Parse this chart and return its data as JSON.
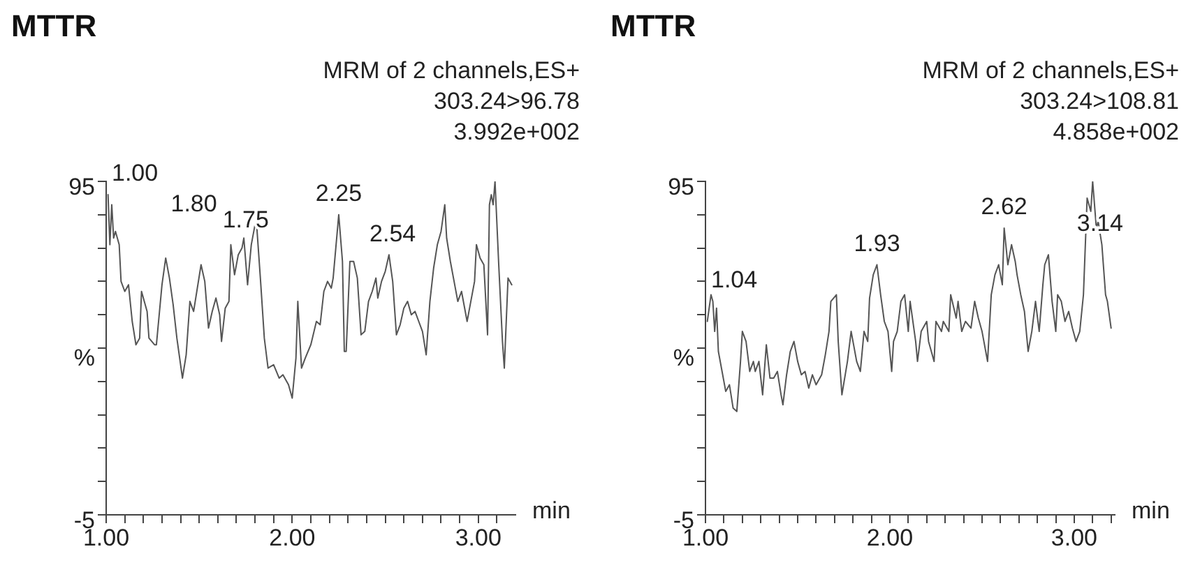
{
  "chart_data": [
    {
      "type": "line",
      "title": "MTTR",
      "subtitle": "MRM of 2 channels,ES+",
      "xlabel": "min",
      "ylabel": "%",
      "grid": false,
      "legend": false,
      "marker": "none",
      "xlim": [
        1,
        3.2
      ],
      "ylim": [
        -5,
        95
      ],
      "xticks": [
        {
          "value": 1,
          "label": "1.00"
        },
        {
          "value": 1.1,
          "label": null
        },
        {
          "value": 1.2,
          "label": null
        },
        {
          "value": 1.3,
          "label": null
        },
        {
          "value": 1.4,
          "label": null
        },
        {
          "value": 1.5,
          "label": null
        },
        {
          "value": 1.6,
          "label": null
        },
        {
          "value": 1.7,
          "label": null
        },
        {
          "value": 1.8,
          "label": null
        },
        {
          "value": 1.9,
          "label": null
        },
        {
          "value": 2,
          "label": "2.00"
        },
        {
          "value": 2.1,
          "label": null
        },
        {
          "value": 2.2,
          "label": null
        },
        {
          "value": 2.3,
          "label": null
        },
        {
          "value": 2.4,
          "label": null
        },
        {
          "value": 2.5,
          "label": null
        },
        {
          "value": 2.6,
          "label": null
        },
        {
          "value": 2.7,
          "label": null
        },
        {
          "value": 2.8,
          "label": null
        },
        {
          "value": 2.9,
          "label": null
        },
        {
          "value": 3,
          "label": "3.00"
        },
        {
          "value": 3.1,
          "label": null
        }
      ],
      "yticks": [
        {
          "value": -5,
          "label": "-5"
        },
        {
          "value": 5,
          "label": null
        },
        {
          "value": 15,
          "label": null
        },
        {
          "value": 25,
          "label": null
        },
        {
          "value": 35,
          "label": null
        },
        {
          "value": 45,
          "label": null
        },
        {
          "value": 55,
          "label": null
        },
        {
          "value": 65,
          "label": null
        },
        {
          "value": 75,
          "label": null
        },
        {
          "value": 85,
          "label": null
        },
        {
          "value": 95,
          "label": "95"
        }
      ],
      "annotations": [
        "303.24>96.78",
        "3.992e+002",
        {
          "text": "1.00",
          "x": 1.0,
          "y": 91
        },
        {
          "text": "1.75",
          "x": 1.75,
          "y": 77
        },
        {
          "text": "1.80",
          "x": 1.8,
          "y": 82
        },
        {
          "text": "2.25",
          "x": 2.25,
          "y": 85
        },
        {
          "text": "2.54",
          "x": 2.54,
          "y": 73
        }
      ],
      "series": [
        {
          "color": "#555555",
          "x": [
            1.01,
            1.02,
            1.03,
            1.04,
            1.05,
            1.07,
            1.08,
            1.1,
            1.12,
            1.14,
            1.16,
            1.18,
            1.19,
            1.22,
            1.23,
            1.26,
            1.27,
            1.3,
            1.32,
            1.34,
            1.36,
            1.38,
            1.41,
            1.43,
            1.45,
            1.47,
            1.51,
            1.53,
            1.55,
            1.57,
            1.59,
            1.61,
            1.62,
            1.64,
            1.66,
            1.67,
            1.69,
            1.71,
            1.73,
            1.74,
            1.76,
            1.78,
            1.8,
            1.81,
            1.83,
            1.85,
            1.87,
            1.9,
            1.93,
            1.95,
            1.98,
            2.0,
            2.02,
            2.03,
            2.05,
            2.07,
            2.1,
            2.13,
            2.15,
            2.17,
            2.19,
            2.21,
            2.22,
            2.25,
            2.27,
            2.28,
            2.29,
            2.31,
            2.33,
            2.35,
            2.37,
            2.39,
            2.41,
            2.43,
            2.45,
            2.46,
            2.48,
            2.5,
            2.52,
            2.54,
            2.56,
            2.58,
            2.6,
            2.62,
            2.64,
            2.66,
            2.68,
            2.7,
            2.72,
            2.74,
            2.76,
            2.78,
            2.8,
            2.82,
            2.83,
            2.85,
            2.87,
            2.89,
            2.91,
            2.94,
            2.95,
            2.98,
            2.99,
            3.01,
            3.03,
            3.05,
            3.06,
            3.07,
            3.08,
            3.09,
            3.11,
            3.13,
            3.14,
            3.16,
            3.18
          ],
          "values": [
            91,
            76,
            88,
            78,
            80,
            76,
            65,
            62,
            64,
            53,
            46,
            48,
            62,
            56,
            48,
            46,
            46,
            64,
            72,
            66,
            58,
            48,
            36,
            43,
            59,
            56,
            70,
            65,
            51,
            56,
            60,
            55,
            47,
            57,
            59,
            76,
            67,
            73,
            75,
            78,
            64,
            76,
            82,
            81,
            65,
            48,
            39,
            40,
            36,
            37,
            34,
            30,
            42,
            59,
            39,
            42,
            46,
            53,
            52,
            62,
            65,
            63,
            66,
            85,
            71,
            44,
            44,
            71,
            71,
            66,
            49,
            50,
            59,
            62,
            66,
            60,
            65,
            68,
            73,
            65,
            49,
            52,
            57,
            59,
            55,
            56,
            53,
            50,
            43,
            59,
            69,
            76,
            80,
            88,
            78,
            71,
            65,
            59,
            62,
            53,
            56,
            65,
            76,
            72,
            70,
            49,
            88,
            91,
            88,
            95,
            70,
            47,
            39,
            66,
            64
          ]
        }
      ]
    },
    {
      "type": "line",
      "title": "MTTR",
      "subtitle": "MRM of 2 channels,ES+",
      "xlabel": "min",
      "ylabel": "%",
      "grid": false,
      "legend": false,
      "marker": "none",
      "xlim": [
        1,
        3.22
      ],
      "ylim": [
        -5,
        95
      ],
      "xticks": [
        {
          "value": 1,
          "label": "1.00"
        },
        {
          "value": 1.1,
          "label": null
        },
        {
          "value": 1.2,
          "label": null
        },
        {
          "value": 1.3,
          "label": null
        },
        {
          "value": 1.4,
          "label": null
        },
        {
          "value": 1.5,
          "label": null
        },
        {
          "value": 1.6,
          "label": null
        },
        {
          "value": 1.7,
          "label": null
        },
        {
          "value": 1.8,
          "label": null
        },
        {
          "value": 1.9,
          "label": null
        },
        {
          "value": 2,
          "label": "2.00"
        },
        {
          "value": 2.1,
          "label": null
        },
        {
          "value": 2.2,
          "label": null
        },
        {
          "value": 2.3,
          "label": null
        },
        {
          "value": 2.4,
          "label": null
        },
        {
          "value": 2.5,
          "label": null
        },
        {
          "value": 2.6,
          "label": null
        },
        {
          "value": 2.7,
          "label": null
        },
        {
          "value": 2.8,
          "label": null
        },
        {
          "value": 2.9,
          "label": null
        },
        {
          "value": 3,
          "label": "3.00"
        },
        {
          "value": 3.1,
          "label": null
        },
        {
          "value": 3.2,
          "label": null
        }
      ],
      "yticks": [
        {
          "value": -5,
          "label": "-5"
        },
        {
          "value": 5,
          "label": null
        },
        {
          "value": 15,
          "label": null
        },
        {
          "value": 25,
          "label": null
        },
        {
          "value": 35,
          "label": null
        },
        {
          "value": 45,
          "label": null
        },
        {
          "value": 55,
          "label": null
        },
        {
          "value": 65,
          "label": null
        },
        {
          "value": 75,
          "label": null
        },
        {
          "value": 85,
          "label": null
        },
        {
          "value": 95,
          "label": "95"
        }
      ],
      "annotations": [
        "303.24>108.81",
        "4.858e+002",
        {
          "text": "1.04",
          "x": 1.04,
          "y": 59
        },
        {
          "text": "1.93",
          "x": 1.93,
          "y": 70
        },
        {
          "text": "2.62",
          "x": 2.62,
          "y": 81
        },
        {
          "text": "3.14",
          "x": 3.14,
          "y": 76
        }
      ],
      "series": [
        {
          "color": "#555555",
          "x": [
            1.01,
            1.02,
            1.03,
            1.04,
            1.05,
            1.06,
            1.07,
            1.09,
            1.11,
            1.13,
            1.15,
            1.17,
            1.19,
            1.2,
            1.22,
            1.24,
            1.26,
            1.27,
            1.29,
            1.31,
            1.33,
            1.35,
            1.37,
            1.39,
            1.41,
            1.42,
            1.44,
            1.46,
            1.48,
            1.5,
            1.52,
            1.54,
            1.56,
            1.58,
            1.6,
            1.63,
            1.65,
            1.67,
            1.68,
            1.71,
            1.72,
            1.74,
            1.77,
            1.79,
            1.8,
            1.82,
            1.84,
            1.86,
            1.88,
            1.89,
            1.91,
            1.93,
            1.95,
            1.97,
            1.99,
            2.01,
            2.02,
            2.04,
            2.06,
            2.08,
            2.1,
            2.11,
            2.14,
            2.15,
            2.17,
            2.2,
            2.21,
            2.24,
            2.25,
            2.28,
            2.29,
            2.32,
            2.33,
            2.36,
            2.37,
            2.39,
            2.41,
            2.44,
            2.46,
            2.48,
            2.5,
            2.51,
            2.53,
            2.55,
            2.57,
            2.59,
            2.61,
            2.62,
            2.64,
            2.66,
            2.68,
            2.69,
            2.71,
            2.73,
            2.75,
            2.77,
            2.79,
            2.81,
            2.83,
            2.84,
            2.86,
            2.88,
            2.9,
            2.91,
            2.93,
            2.95,
            2.97,
            2.99,
            3.01,
            3.03,
            3.05,
            3.07,
            3.09,
            3.1,
            3.12,
            3.13,
            3.15,
            3.17,
            3.18,
            3.2
          ],
          "values": [
            53,
            57,
            61,
            59,
            50,
            57,
            44,
            38,
            32,
            34,
            27,
            26,
            41,
            50,
            47,
            38,
            41,
            38,
            41,
            31,
            46,
            36,
            36,
            38,
            31,
            28,
            37,
            44,
            47,
            41,
            37,
            38,
            33,
            37,
            34,
            37,
            43,
            50,
            59,
            61,
            47,
            31,
            41,
            50,
            47,
            41,
            38,
            50,
            47,
            60,
            67,
            70,
            61,
            53,
            50,
            38,
            47,
            50,
            59,
            61,
            50,
            59,
            47,
            41,
            50,
            53,
            47,
            41,
            53,
            50,
            53,
            50,
            61,
            54,
            59,
            50,
            53,
            51,
            59,
            54,
            50,
            47,
            41,
            61,
            67,
            70,
            64,
            81,
            70,
            76,
            71,
            67,
            61,
            56,
            44,
            50,
            59,
            50,
            64,
            70,
            73,
            59,
            50,
            61,
            59,
            53,
            56,
            51,
            47,
            50,
            61,
            90,
            86,
            95,
            81,
            83,
            76,
            61,
            59,
            51
          ]
        }
      ]
    }
  ]
}
